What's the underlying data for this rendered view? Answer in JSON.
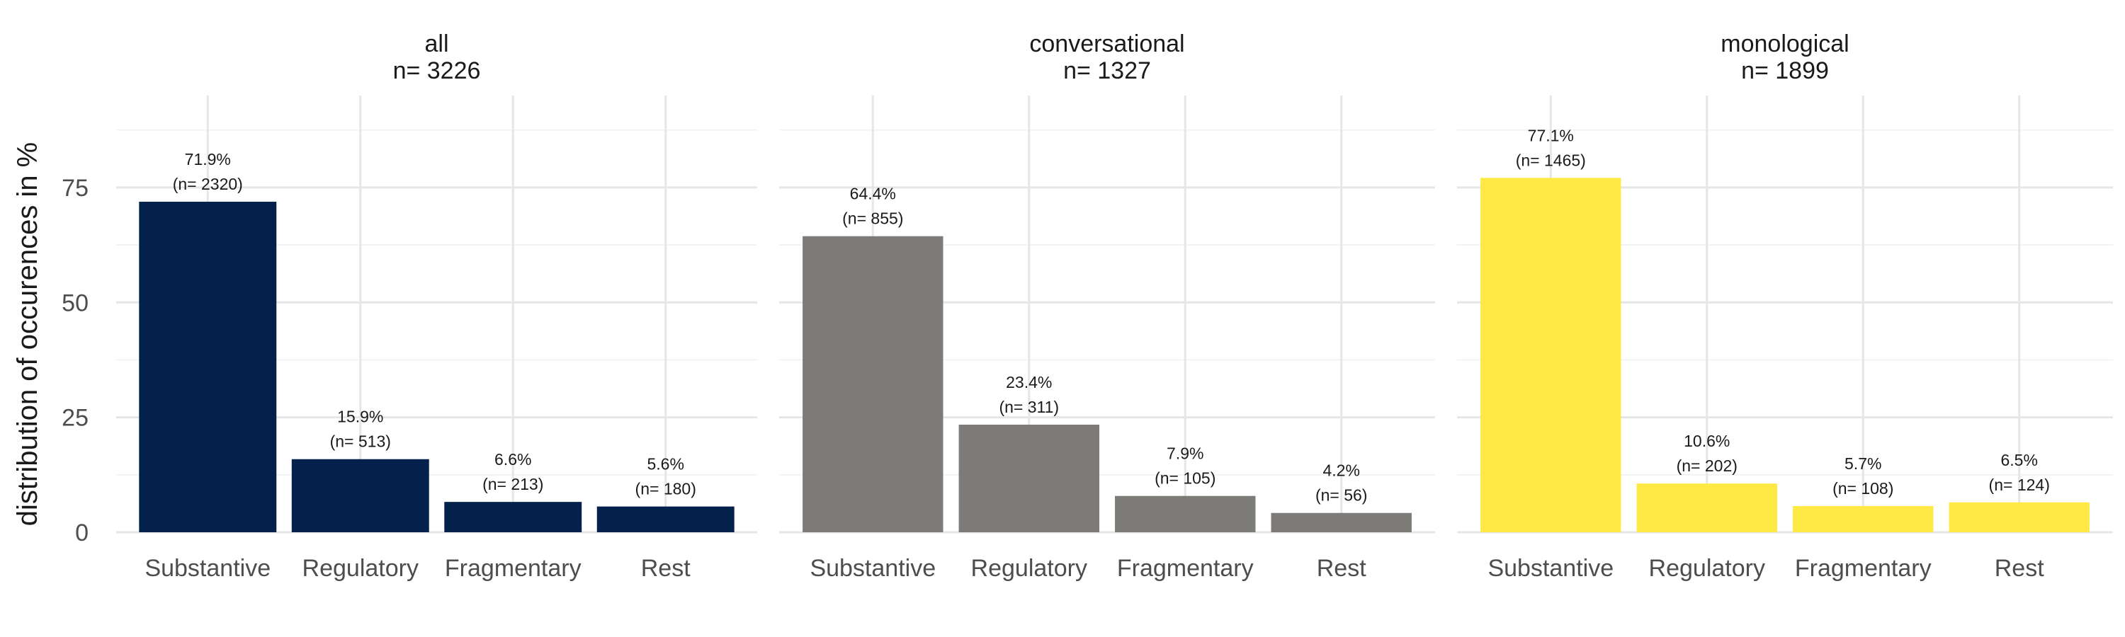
{
  "chart_data": {
    "type": "bar",
    "ylabel": "distribution of occurences in %",
    "ylim": [
      0,
      95
    ],
    "yticks": [
      0,
      25,
      50,
      75
    ],
    "grid": true,
    "legend": "none",
    "categories": [
      "Substantive",
      "Regulatory",
      "Fragmentary",
      "Rest"
    ],
    "facets": [
      {
        "title": "all",
        "subtitle": "n=  3226",
        "color": "#03214b",
        "values": [
          71.9,
          15.9,
          6.6,
          5.6
        ],
        "percent_labels": [
          "71.9%",
          "15.9%",
          "6.6%",
          "5.6%"
        ],
        "count_labels": [
          "(n= 2320)",
          "(n= 513)",
          "(n= 213)",
          "(n= 180)"
        ]
      },
      {
        "title": "conversational",
        "subtitle": "n=  1327",
        "color": "#7c7b78",
        "values": [
          64.4,
          23.4,
          7.9,
          4.2
        ],
        "percent_labels": [
          "64.4%",
          "23.4%",
          "7.9%",
          "4.2%"
        ],
        "count_labels": [
          "(n= 855)",
          "(n= 311)",
          "(n= 105)",
          "(n= 56)"
        ]
      },
      {
        "title": "monological",
        "subtitle": "n=  1899",
        "color": "#ffe945",
        "values": [
          77.1,
          10.6,
          5.7,
          6.5
        ],
        "percent_labels": [
          "77.1%",
          "10.6%",
          "5.7%",
          "6.5%"
        ],
        "count_labels": [
          "(n= 1465)",
          "(n= 202)",
          "(n= 108)",
          "(n= 124)"
        ]
      }
    ]
  }
}
